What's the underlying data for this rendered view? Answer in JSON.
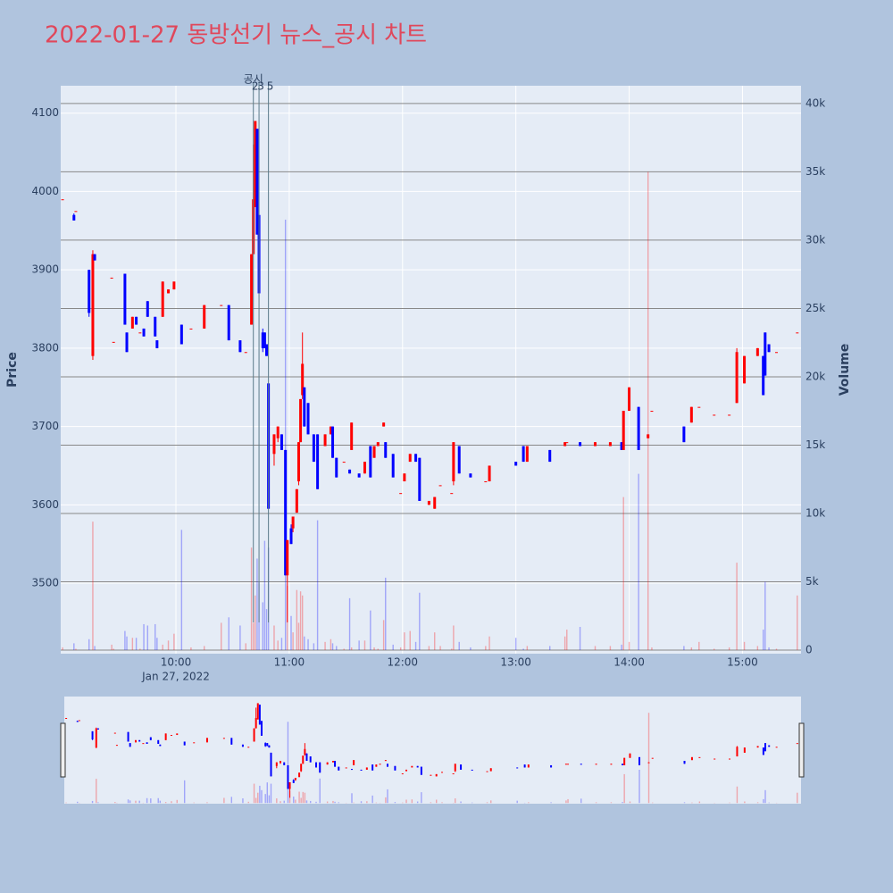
{
  "chart_data": {
    "type": "candlestick",
    "title": "2022-01-27 동방선기 뉴스_공시 차트",
    "y_label": "Price",
    "y2_label": "Volume",
    "xlim": [
      "2022-01-27 08:59",
      "2022-01-27 15:31"
    ],
    "xticks": [
      {
        "value": "2022-01-27 10:00",
        "label": "10:00"
      },
      {
        "value": "2022-01-27 11:00",
        "label": "11:00"
      },
      {
        "value": "2022-01-27 12:00",
        "label": "12:00"
      },
      {
        "value": "2022-01-27 13:00",
        "label": "13:00"
      },
      {
        "value": "2022-01-27 14:00",
        "label": "14:00"
      },
      {
        "value": "2022-01-27 15:00",
        "label": "15:00"
      }
    ],
    "xtick_date_label": "Jan 27, 2022",
    "ylim": [
      3410,
      4135
    ],
    "yticks": [
      3500,
      3600,
      3700,
      3800,
      3900,
      4000,
      4100
    ],
    "y2lim": [
      -260,
      41300
    ],
    "y2ticks": [
      0,
      {
        "value": 5000,
        "label": "5k"
      },
      {
        "value": 10000,
        "label": "10k"
      },
      {
        "value": 15000,
        "label": "15k"
      },
      {
        "value": 20000,
        "label": "20k"
      },
      {
        "value": 25000,
        "label": "25k"
      },
      {
        "value": 30000,
        "label": "30k"
      },
      {
        "value": 35000,
        "label": "35k"
      },
      {
        "value": 40000,
        "label": "40k"
      }
    ],
    "grid": true,
    "increasing_color": "#ff0000",
    "decreasing_color": "#0000ff",
    "annotation": {
      "title": "공시",
      "events": [
        {
          "x": "2022-01-27 10:41",
          "label": "2"
        },
        {
          "x": "2022-01-27 10:44",
          "label": "3"
        },
        {
          "x": "2022-01-27 10:49",
          "label": "5"
        }
      ]
    },
    "x": [
      "2022-01-27 09:00",
      "2022-01-27 09:06",
      "2022-01-27 09:07",
      "2022-01-27 09:14",
      "2022-01-27 09:16",
      "2022-01-27 09:17",
      "2022-01-27 09:26",
      "2022-01-27 09:27",
      "2022-01-27 09:33",
      "2022-01-27 09:34",
      "2022-01-27 09:37",
      "2022-01-27 09:39",
      "2022-01-27 09:41",
      "2022-01-27 09:43",
      "2022-01-27 09:45",
      "2022-01-27 09:49",
      "2022-01-27 09:50",
      "2022-01-27 09:53",
      "2022-01-27 09:56",
      "2022-01-27 09:59",
      "2022-01-27 10:03",
      "2022-01-27 10:08",
      "2022-01-27 10:15",
      "2022-01-27 10:24",
      "2022-01-27 10:28",
      "2022-01-27 10:34",
      "2022-01-27 10:37",
      "2022-01-27 10:40",
      "2022-01-27 10:41",
      "2022-01-27 10:42",
      "2022-01-27 10:43",
      "2022-01-27 10:44",
      "2022-01-27 10:46",
      "2022-01-27 10:47",
      "2022-01-27 10:48",
      "2022-01-27 10:49",
      "2022-01-27 10:52",
      "2022-01-27 10:54",
      "2022-01-27 10:56",
      "2022-01-27 10:58",
      "2022-01-27 10:59",
      "2022-01-27 11:01",
      "2022-01-27 11:02",
      "2022-01-27 11:04",
      "2022-01-27 11:05",
      "2022-01-27 11:06",
      "2022-01-27 11:07",
      "2022-01-27 11:08",
      "2022-01-27 11:10",
      "2022-01-27 11:13",
      "2022-01-27 11:15",
      "2022-01-27 11:19",
      "2022-01-27 11:22",
      "2022-01-27 11:23",
      "2022-01-27 11:25",
      "2022-01-27 11:29",
      "2022-01-27 11:32",
      "2022-01-27 11:33",
      "2022-01-27 11:37",
      "2022-01-27 11:40",
      "2022-01-27 11:43",
      "2022-01-27 11:45",
      "2022-01-27 11:47",
      "2022-01-27 11:50",
      "2022-01-27 11:51",
      "2022-01-27 11:55",
      "2022-01-27 11:59",
      "2022-01-27 12:01",
      "2022-01-27 12:04",
      "2022-01-27 12:07",
      "2022-01-27 12:09",
      "2022-01-27 12:14",
      "2022-01-27 12:17",
      "2022-01-27 12:20",
      "2022-01-27 12:26",
      "2022-01-27 12:27",
      "2022-01-27 12:30",
      "2022-01-27 12:36",
      "2022-01-27 12:44",
      "2022-01-27 12:46",
      "2022-01-27 13:00",
      "2022-01-27 13:04",
      "2022-01-27 13:06",
      "2022-01-27 13:18",
      "2022-01-27 13:26",
      "2022-01-27 13:27",
      "2022-01-27 13:34",
      "2022-01-27 13:42",
      "2022-01-27 13:50",
      "2022-01-27 13:56",
      "2022-01-27 13:57",
      "2022-01-27 14:00",
      "2022-01-27 14:05",
      "2022-01-27 14:10",
      "2022-01-27 14:12",
      "2022-01-27 14:29",
      "2022-01-27 14:33",
      "2022-01-27 14:37",
      "2022-01-27 14:45",
      "2022-01-27 14:53",
      "2022-01-27 14:57",
      "2022-01-27 15:01",
      "2022-01-27 15:08",
      "2022-01-27 15:11",
      "2022-01-27 15:12",
      "2022-01-27 15:14",
      "2022-01-27 15:18",
      "2022-01-27 15:29"
    ],
    "open": [
      3990,
      3970,
      3975,
      3900,
      3790,
      3920,
      3890,
      3808,
      3895,
      3820,
      3825,
      3840,
      3820,
      3825,
      3860,
      3840,
      3810,
      3840,
      3870,
      3875,
      3830,
      3825,
      3825,
      3855,
      3855,
      3810,
      3795,
      3830,
      3920,
      3980,
      4080,
      3970,
      3820,
      3820,
      3805,
      3755,
      3665,
      3685,
      3690,
      3670,
      3510,
      3570,
      3570,
      3590,
      3630,
      3680,
      3740,
      3750,
      3730,
      3690,
      3690,
      3675,
      3690,
      3700,
      3660,
      3655,
      3645,
      3670,
      3640,
      3640,
      3675,
      3660,
      3675,
      3700,
      3680,
      3665,
      3615,
      3630,
      3655,
      3665,
      3660,
      3600,
      3595,
      3625,
      3615,
      3630,
      3675,
      3640,
      3630,
      3630,
      3655,
      3675,
      3655,
      3670,
      3675,
      3680,
      3680,
      3675,
      3675,
      3680,
      3670,
      3720,
      3725,
      3685,
      3720,
      3700,
      3705,
      3725,
      3715,
      3715,
      3730,
      3755,
      3790,
      3790,
      3820,
      3805,
      3795,
      3820
    ],
    "high": [
      3990,
      3972,
      3975,
      3900,
      3925,
      3920,
      3890,
      3808,
      3895,
      3820,
      3840,
      3840,
      3820,
      3825,
      3860,
      3840,
      3810,
      3885,
      3875,
      3885,
      3830,
      3825,
      3855,
      3855,
      3855,
      3810,
      3795,
      3920,
      4060,
      4090,
      4080,
      3970,
      3825,
      3820,
      3805,
      3755,
      3690,
      3700,
      3690,
      3670,
      3555,
      3575,
      3585,
      3620,
      3680,
      3735,
      3820,
      3750,
      3730,
      3690,
      3690,
      3690,
      3700,
      3700,
      3660,
      3655,
      3645,
      3705,
      3640,
      3655,
      3675,
      3675,
      3680,
      3705,
      3680,
      3665,
      3615,
      3640,
      3665,
      3665,
      3660,
      3605,
      3610,
      3625,
      3615,
      3680,
      3675,
      3640,
      3630,
      3650,
      3655,
      3675,
      3675,
      3670,
      3680,
      3680,
      3680,
      3680,
      3680,
      3680,
      3720,
      3750,
      3725,
      3690,
      3720,
      3700,
      3725,
      3725,
      3715,
      3715,
      3800,
      3790,
      3800,
      3790,
      3820,
      3805,
      3795,
      3820
    ],
    "low": [
      3990,
      3963,
      3975,
      3840,
      3785,
      3912,
      3890,
      3808,
      3830,
      3795,
      3825,
      3830,
      3820,
      3815,
      3840,
      3815,
      3800,
      3840,
      3870,
      3875,
      3805,
      3825,
      3825,
      3855,
      3810,
      3795,
      3795,
      3830,
      3920,
      3980,
      3945,
      3870,
      3795,
      3800,
      3790,
      3595,
      3650,
      3680,
      3670,
      3510,
      3450,
      3550,
      3565,
      3590,
      3625,
      3680,
      3735,
      3700,
      3690,
      3655,
      3620,
      3675,
      3690,
      3660,
      3635,
      3655,
      3640,
      3670,
      3635,
      3640,
      3635,
      3660,
      3675,
      3700,
      3660,
      3635,
      3615,
      3630,
      3655,
      3655,
      3605,
      3600,
      3595,
      3625,
      3615,
      3625,
      3640,
      3635,
      3630,
      3630,
      3650,
      3655,
      3655,
      3655,
      3675,
      3680,
      3675,
      3675,
      3675,
      3670,
      3670,
      3720,
      3670,
      3685,
      3720,
      3680,
      3705,
      3725,
      3715,
      3715,
      3730,
      3755,
      3790,
      3740,
      3765,
      3795,
      3795,
      3820
    ],
    "close": [
      3990,
      3963,
      3975,
      3845,
      3920,
      3912,
      3890,
      3808,
      3830,
      3795,
      3840,
      3830,
      3820,
      3815,
      3840,
      3815,
      3800,
      3885,
      3875,
      3885,
      3805,
      3825,
      3855,
      3855,
      3810,
      3795,
      3795,
      3920,
      3990,
      4090,
      3945,
      3870,
      3800,
      3800,
      3790,
      3595,
      3690,
      3700,
      3670,
      3510,
      3555,
      3550,
      3585,
      3620,
      3680,
      3735,
      3780,
      3700,
      3690,
      3655,
      3620,
      3690,
      3700,
      3660,
      3635,
      3655,
      3640,
      3705,
      3635,
      3655,
      3635,
      3675,
      3680,
      3705,
      3660,
      3635,
      3615,
      3640,
      3665,
      3655,
      3605,
      3605,
      3610,
      3625,
      3615,
      3680,
      3640,
      3635,
      3630,
      3650,
      3650,
      3655,
      3675,
      3655,
      3680,
      3680,
      3675,
      3680,
      3680,
      3670,
      3720,
      3750,
      3670,
      3690,
      3720,
      3680,
      3725,
      3725,
      3715,
      3715,
      3795,
      3790,
      3800,
      3740,
      3765,
      3795,
      3795,
      3820
    ],
    "volume": [
      200,
      500,
      100,
      800,
      9400,
      300,
      400,
      100,
      1400,
      1000,
      900,
      900,
      100,
      1900,
      1800,
      1900,
      900,
      400,
      700,
      1200,
      8800,
      200,
      300,
      2000,
      2400,
      1800,
      500,
      7500,
      2000,
      4000,
      6700,
      5000,
      3500,
      8000,
      3000,
      7500,
      1800,
      700,
      900,
      31500,
      4700,
      2500,
      1300,
      4400,
      2000,
      4300,
      4000,
      1000,
      800,
      500,
      9500,
      600,
      800,
      500,
      300,
      100,
      3800,
      200,
      700,
      700,
      2900,
      200,
      100,
      2200,
      5300,
      400,
      200,
      1300,
      1400,
      600,
      4200,
      300,
      1300,
      300,
      100,
      1800,
      600,
      200,
      300,
      1000,
      900,
      100,
      300,
      300,
      1000,
      1500,
      1700,
      300,
      300,
      400,
      11200,
      600,
      12900,
      35000,
      200,
      300,
      200,
      600,
      100,
      200,
      6400,
      600,
      300,
      1500,
      5000,
      200,
      100,
      4000
    ]
  }
}
